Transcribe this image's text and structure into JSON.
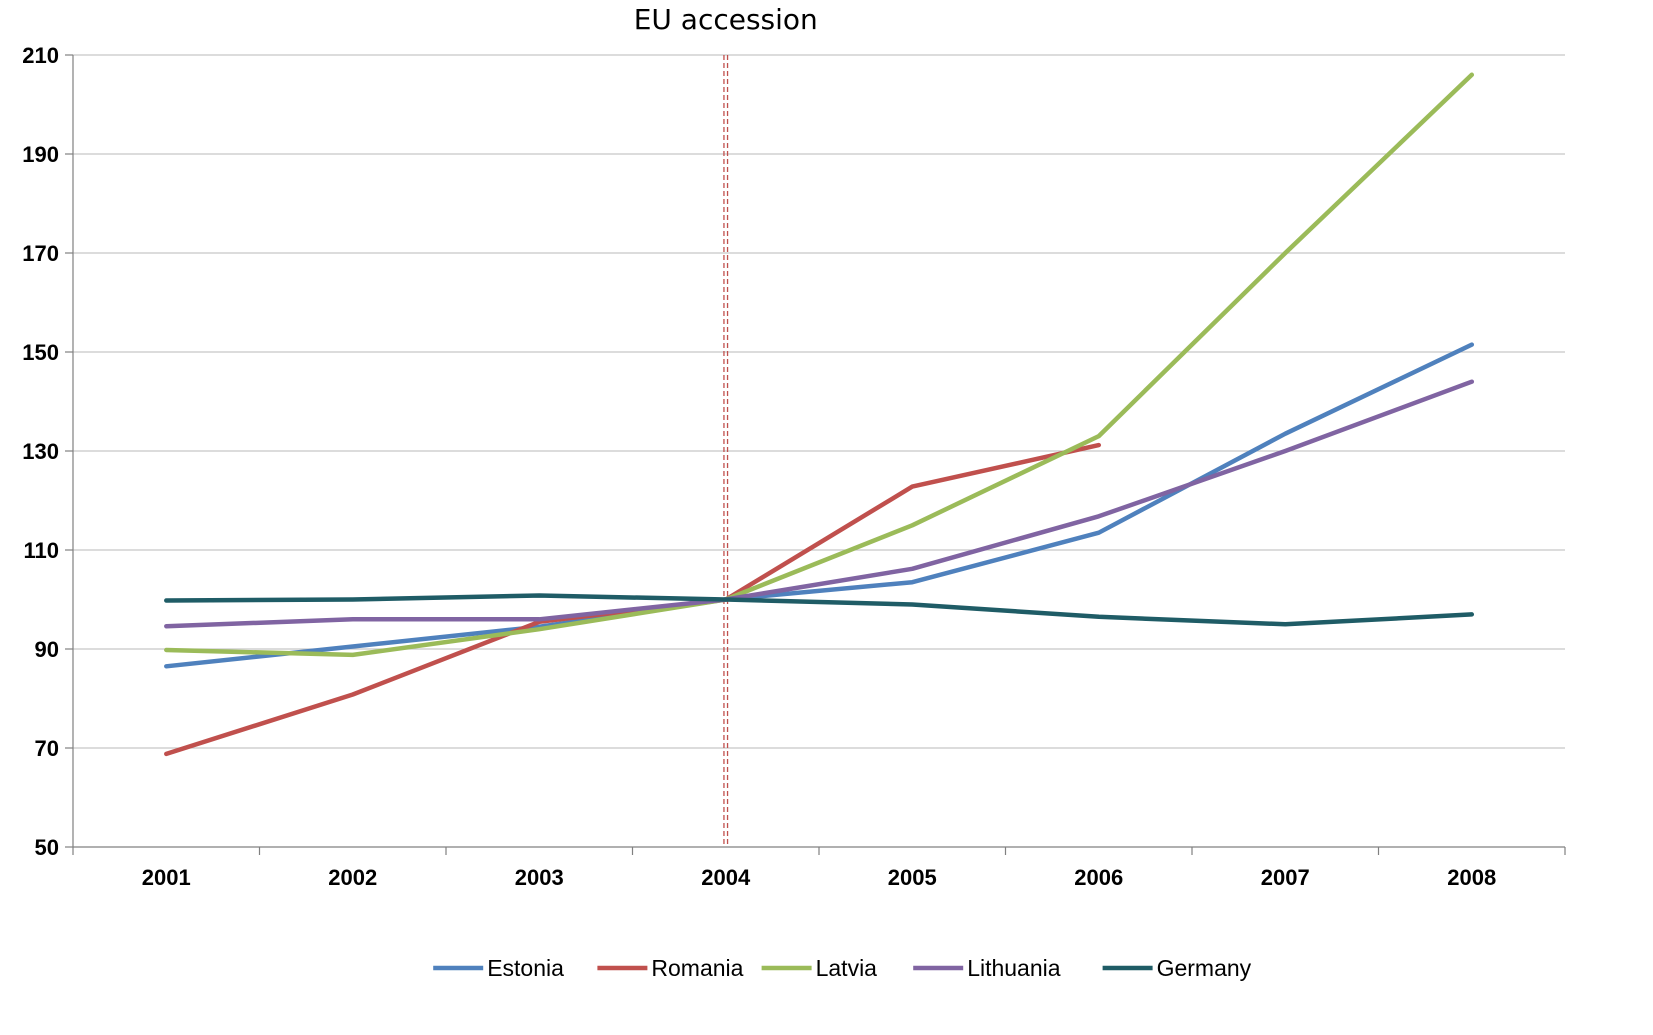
{
  "chart_data": {
    "type": "line",
    "categories": [
      "2001",
      "2002",
      "2003",
      "2004",
      "2005",
      "2006",
      "2007",
      "2008"
    ],
    "ylim": [
      50,
      210
    ],
    "yticks": [
      50,
      70,
      90,
      110,
      130,
      150,
      170,
      190,
      210
    ],
    "grid": "horizontal",
    "legend_position": "bottom",
    "annotation": {
      "label": "EU accession",
      "at_category": "2004",
      "color": "#C0504D"
    },
    "series": [
      {
        "name": "Estonia",
        "color": "#4F81BD",
        "values": [
          86.5,
          90.5,
          94.5,
          100,
          103.5,
          113.5,
          133.5,
          151.5
        ]
      },
      {
        "name": "Romania",
        "color": "#C0504D",
        "values": [
          68.8,
          80.8,
          95.5,
          100,
          122.8,
          131.2,
          null,
          null
        ]
      },
      {
        "name": "Latvia",
        "color": "#9BBB59",
        "values": [
          89.8,
          88.8,
          94.0,
          100,
          115.0,
          133.0,
          170.0,
          206.0
        ]
      },
      {
        "name": "Lithuania",
        "color": "#8064A2",
        "values": [
          94.6,
          96.0,
          96.0,
          100,
          106.2,
          116.8,
          130.0,
          144.0
        ]
      },
      {
        "name": "Germany",
        "color": "#1F5C66",
        "values": [
          99.8,
          100.0,
          100.8,
          100,
          99.0,
          96.5,
          95.0,
          97.0
        ]
      }
    ]
  }
}
